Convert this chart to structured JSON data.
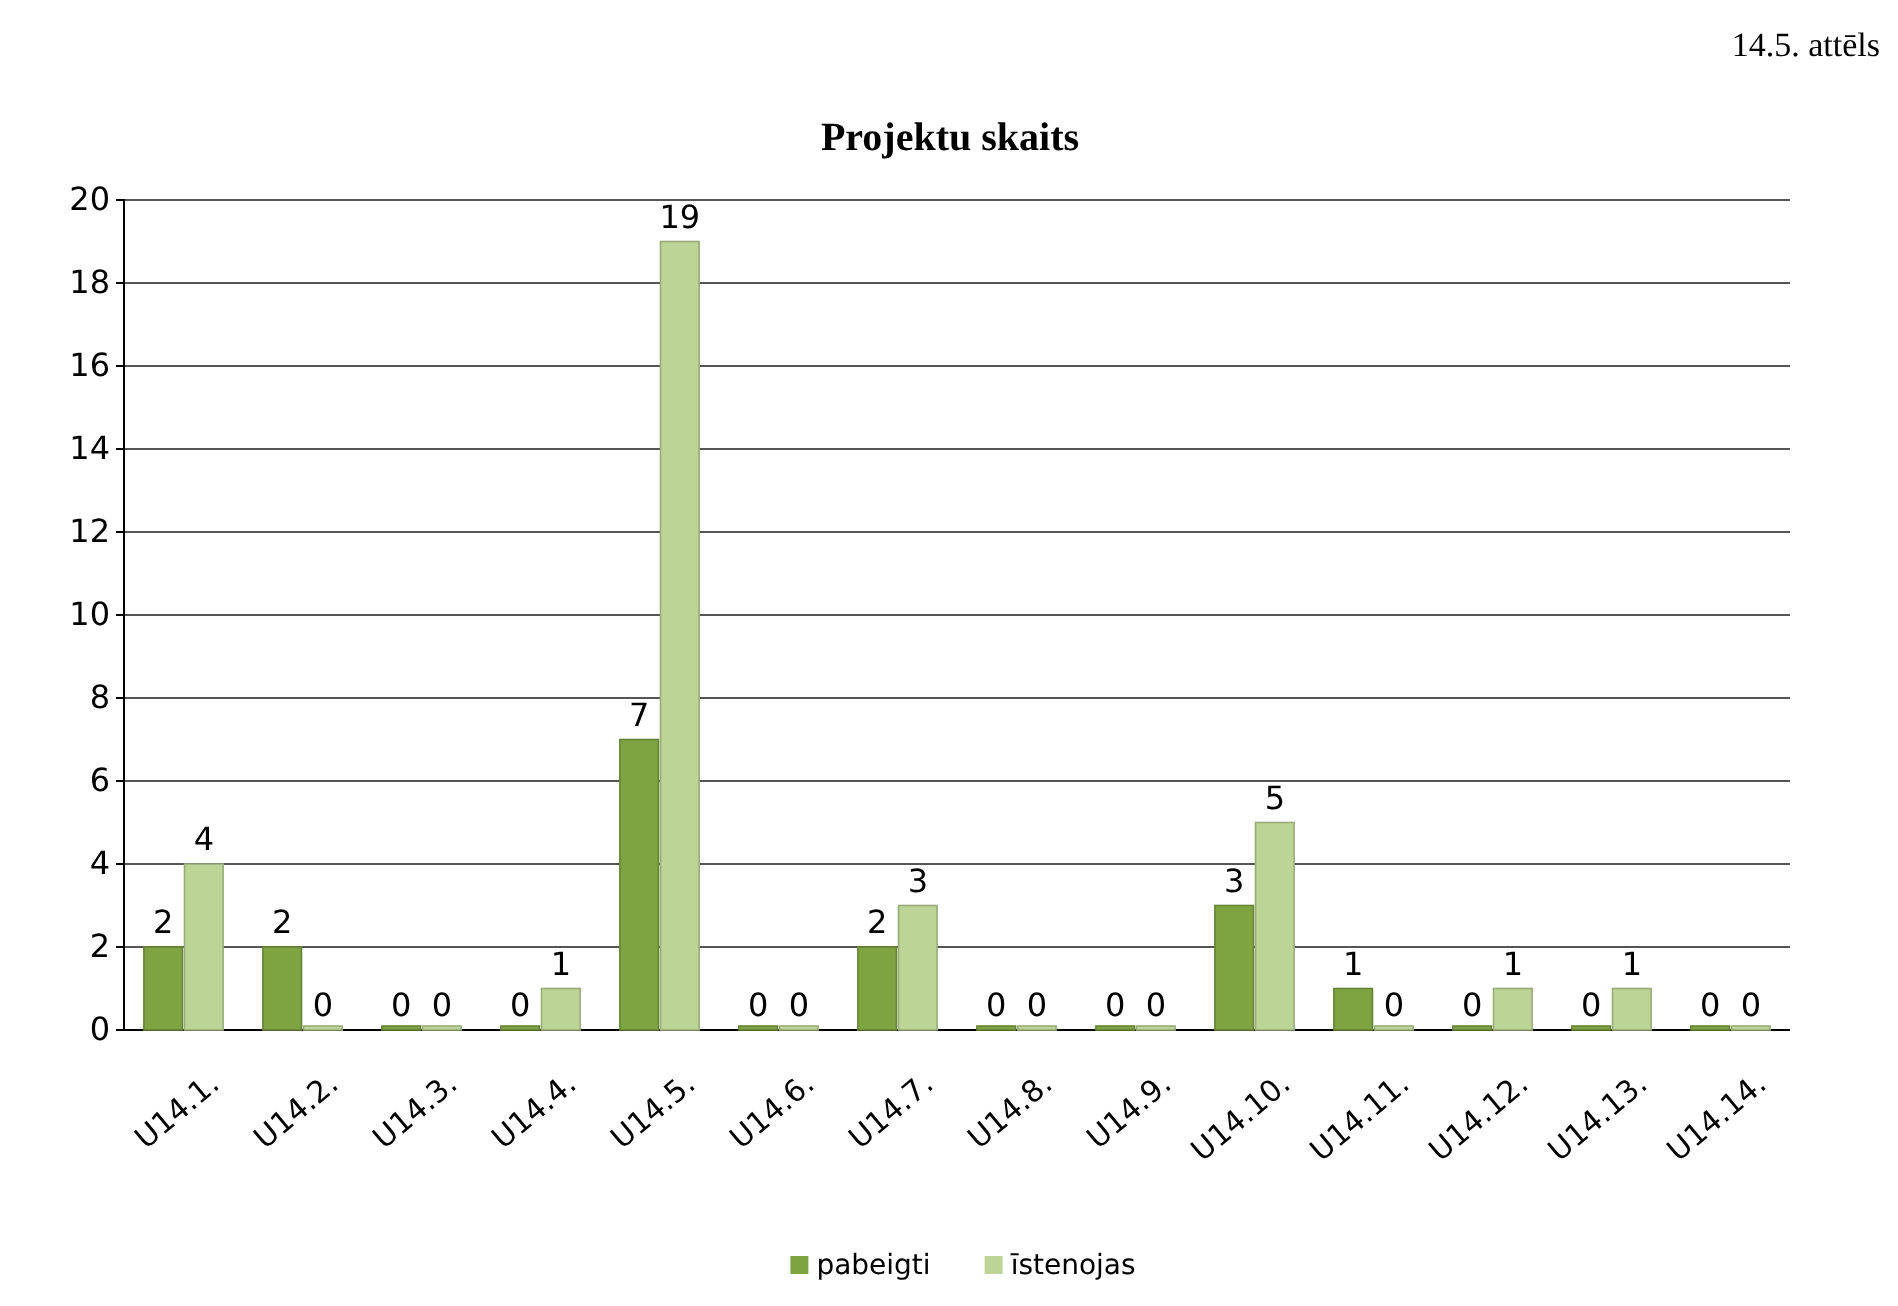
{
  "chart_data": {
    "type": "bar",
    "title": "Projektu skaits",
    "annotations": [
      "14.5. attēls"
    ],
    "categories": [
      "U14.1.",
      "U14.2.",
      "U14.3.",
      "U14.4.",
      "U14.5.",
      "U14.6.",
      "U14.7.",
      "U14.8.",
      "U14.9.",
      "U14.10.",
      "U14.11.",
      "U14.12.",
      "U14.13.",
      "U14.14."
    ],
    "series": [
      {
        "name": "pabeigti",
        "color": "#7ea442",
        "values": [
          2,
          2,
          0,
          0,
          7,
          0,
          2,
          0,
          0,
          3,
          1,
          0,
          0,
          0
        ]
      },
      {
        "name": "īstenojas",
        "color": "#bcd596",
        "values": [
          4,
          0,
          0,
          1,
          19,
          0,
          3,
          0,
          0,
          5,
          0,
          1,
          1,
          0
        ]
      }
    ],
    "ylim": [
      0,
      20
    ],
    "yticks": [
      0,
      2,
      4,
      6,
      8,
      10,
      12,
      14,
      16,
      18,
      20
    ],
    "grid": "y",
    "legend": "bottom",
    "data_labels": true
  }
}
